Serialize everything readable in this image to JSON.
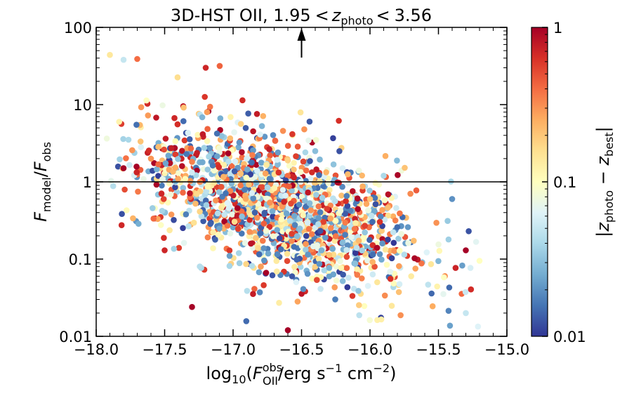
{
  "chart_data": {
    "type": "scatter",
    "title": {
      "prefix": "3D-HST OII, ",
      "lower": "1.95",
      "lt": "<",
      "var": "z",
      "var_sub": "photo",
      "upper": "3.56"
    },
    "xlabel": {
      "pre": "log",
      "pre_sub": "10",
      "open": "(",
      "var": "F",
      "var_sup": "obs",
      "var_sub": "OII",
      "mid": "/erg s",
      "exp1": "−1",
      "mid2": " cm",
      "exp2": "−2",
      "close": ")"
    },
    "ylabel": {
      "num": "F",
      "num_sub": "model",
      "slash": "/",
      "den": "F",
      "den_sub": "obs"
    },
    "colorbar_label": {
      "bar": "|",
      "a": "z",
      "a_sub": "photo",
      "minus": " − ",
      "b": "z",
      "b_sub": "best",
      "bar2": "|"
    },
    "xlim": [
      -18.0,
      -15.0
    ],
    "ylim": [
      0.01,
      100
    ],
    "yscale": "log",
    "x_ticks": [
      {
        "value": -18.0,
        "label": "−18.0"
      },
      {
        "value": -17.5,
        "label": "−17.5"
      },
      {
        "value": -17.0,
        "label": "−17.0"
      },
      {
        "value": -16.5,
        "label": "−16.5"
      },
      {
        "value": -16.0,
        "label": "−16.0"
      },
      {
        "value": -15.5,
        "label": "−15.5"
      },
      {
        "value": -15.0,
        "label": "−15.0"
      }
    ],
    "y_ticks": [
      {
        "value": 100,
        "label": "100"
      },
      {
        "value": 10,
        "label": "10"
      },
      {
        "value": 1,
        "label": "1"
      },
      {
        "value": 0.1,
        "label": "0.1"
      },
      {
        "value": 0.01,
        "label": "0.01"
      }
    ],
    "colorbar_ticks": [
      {
        "value": 1,
        "label": "1"
      },
      {
        "value": 0.1,
        "label": "0.1"
      },
      {
        "value": 0.01,
        "label": "0.01"
      }
    ],
    "colorbar_range": [
      0.01,
      1
    ],
    "colormap": [
      "#313695",
      "#4575b4",
      "#74add1",
      "#abd9e9",
      "#e0f3f8",
      "#ffffbf",
      "#fee090",
      "#fdae61",
      "#f46d43",
      "#d73027",
      "#a50026"
    ],
    "reference_line_y": 1,
    "arrow_x": -16.5,
    "n_points": 1800,
    "points_sample": [
      [
        -17.9,
        44,
        0.14
      ],
      [
        -17.8,
        38,
        0.05
      ],
      [
        -17.7,
        39,
        0.4
      ],
      [
        -17.2,
        30,
        0.7
      ],
      [
        -16.6,
        0.012,
        1.0
      ],
      [
        -17.3,
        0.024,
        1.0
      ],
      [
        -15.3,
        0.02,
        0.05
      ],
      [
        -15.2,
        0.095,
        0.1
      ],
      [
        -15.4,
        0.6,
        0.02
      ],
      [
        -15.3,
        0.13,
        1.0
      ],
      [
        -16.0,
        0.6,
        0.2
      ],
      [
        -17.5,
        0.13,
        0.7
      ],
      [
        -17.8,
        1.5,
        1.0
      ],
      [
        -17.6,
        2.0,
        0.3
      ],
      [
        -17.0,
        0.3,
        1.0
      ],
      [
        -16.3,
        0.08,
        0.4
      ],
      [
        -16.8,
        4.0,
        0.02
      ],
      [
        -16.4,
        2.5,
        0.03
      ],
      [
        -16.2,
        1.5,
        0.06
      ],
      [
        -15.9,
        1.2,
        0.04
      ]
    ]
  }
}
